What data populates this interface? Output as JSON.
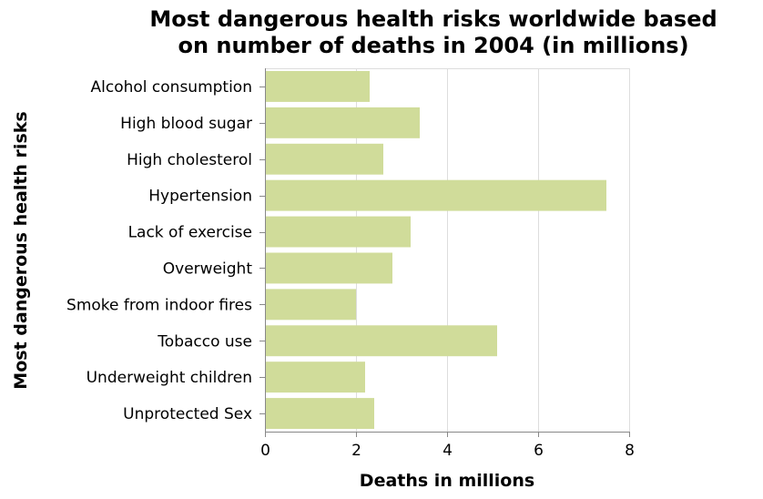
{
  "chart_data": {
    "type": "bar",
    "orientation": "horizontal",
    "title": [
      "Most dangerous health risks worldwide based",
      "on number of deaths in 2004 (in millions)"
    ],
    "xlabel": "Deaths in millions",
    "ylabel": "Most dangerous health risks",
    "xlim": [
      0,
      8
    ],
    "xticks": [
      0,
      2,
      4,
      6,
      8
    ],
    "grid": true,
    "bar_color": "#d0dc9a",
    "categories": [
      "Alcohol consumption",
      "High blood sugar",
      "High cholesterol",
      "Hypertension",
      "Lack of exercise",
      "Overweight",
      "Smoke from indoor fires",
      "Tobacco use",
      "Underweight children",
      "Unprotected Sex"
    ],
    "values": [
      2.3,
      3.4,
      2.6,
      7.5,
      3.2,
      2.8,
      2.0,
      5.1,
      2.2,
      2.4
    ]
  }
}
